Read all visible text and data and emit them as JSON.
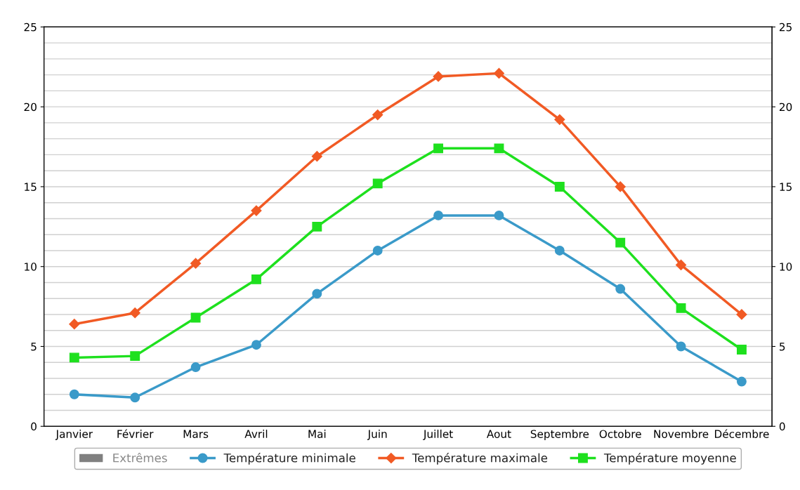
{
  "chart_data": {
    "type": "line",
    "categories": [
      "Janvier",
      "Février",
      "Mars",
      "Avril",
      "Mai",
      "Juin",
      "Juillet",
      "Aout",
      "Septembre",
      "Octobre",
      "Novembre",
      "Décembre"
    ],
    "series": [
      {
        "name": "Extrêmes",
        "type": "bar",
        "color": "#808080",
        "values": [
          null,
          null,
          null,
          null,
          null,
          null,
          null,
          null,
          null,
          null,
          null,
          null
        ]
      },
      {
        "name": "Température minimale",
        "color": "#3a9ac9",
        "marker": "circle",
        "values": [
          2.0,
          1.8,
          3.7,
          5.1,
          8.3,
          11.0,
          13.2,
          13.2,
          11.0,
          8.6,
          5.0,
          2.8
        ]
      },
      {
        "name": "Température maximale",
        "color": "#f15a24",
        "marker": "diamond",
        "values": [
          6.4,
          7.1,
          10.2,
          13.5,
          16.9,
          19.5,
          21.9,
          22.1,
          19.2,
          15.0,
          10.1,
          7.0
        ]
      },
      {
        "name": "Température moyenne",
        "color": "#1ee01e",
        "marker": "square",
        "values": [
          4.3,
          4.4,
          6.8,
          9.2,
          12.5,
          15.2,
          17.4,
          17.4,
          15.0,
          11.5,
          7.4,
          4.8
        ]
      }
    ],
    "ylim": [
      0,
      25
    ],
    "yticks": [
      0,
      5,
      10,
      15,
      20,
      25
    ],
    "y2lim": [
      0,
      25
    ],
    "y2ticks": [
      0,
      5,
      10,
      15,
      20,
      25
    ],
    "grid": true,
    "legend": "bottom"
  }
}
